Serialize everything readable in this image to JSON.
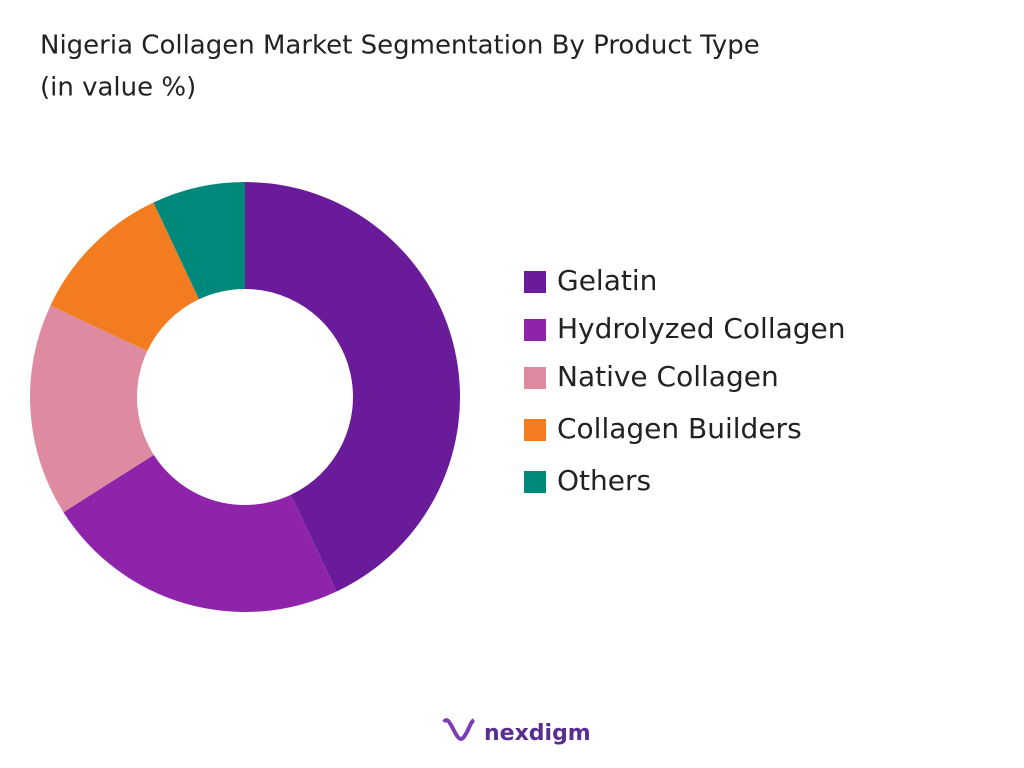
{
  "chart_data": {
    "type": "donut",
    "title": "Nigeria Collagen Market  Segmentation By Product Type",
    "subtitle": "(in value %)",
    "categories": [
      "Gelatin",
      "Hydrolyzed Collagen",
      "Native Collagen",
      "Collagen Builders",
      "Others"
    ],
    "values": [
      43,
      23,
      16,
      11,
      7
    ],
    "colors": [
      "#6a1b9a",
      "#8e24aa",
      "#de8aa0",
      "#f47c20",
      "#00897b"
    ],
    "legend": "right"
  },
  "brand": "nexdigm"
}
